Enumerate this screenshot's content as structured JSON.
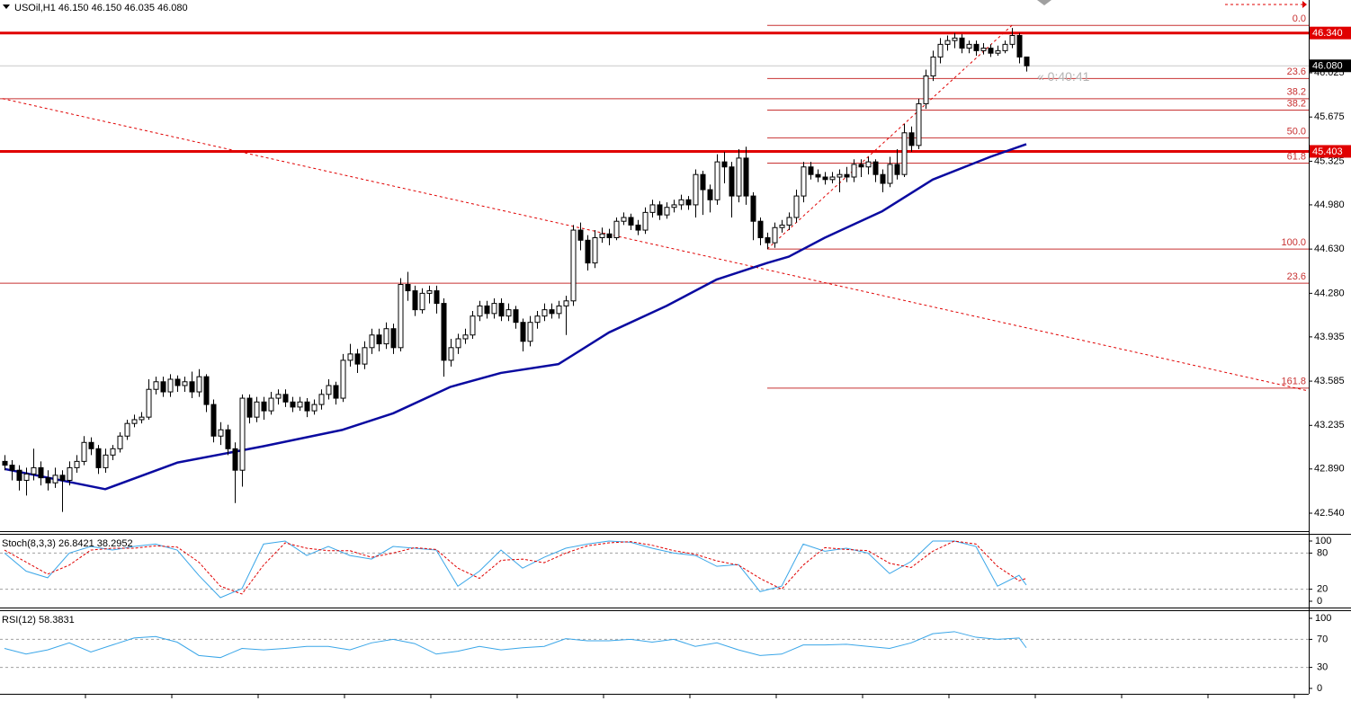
{
  "chart_data": [
    {
      "type": "candlestick",
      "title": "USOil,H1  46.150 46.150 46.035 46.080",
      "timer": "« 0:40:41",
      "open": [
        42.95,
        42.92,
        42.88,
        42.8,
        42.85,
        42.9,
        42.82,
        42.78,
        42.84,
        42.8,
        42.9,
        42.95,
        43.1,
        43.05,
        42.9,
        43.0,
        43.05,
        43.15,
        43.25,
        43.28,
        43.3,
        43.52,
        43.58,
        43.5,
        43.6,
        43.55,
        43.58,
        43.5,
        43.62,
        43.4,
        43.15,
        43.2,
        43.05,
        42.88,
        43.45,
        43.3,
        43.42,
        43.35,
        43.45,
        43.48,
        43.42,
        43.38,
        43.42,
        43.35,
        43.4,
        43.48,
        43.55,
        43.45,
        43.75,
        43.8,
        43.72,
        43.85,
        43.95,
        43.88,
        44.0,
        43.85,
        44.35,
        44.3,
        44.15,
        44.28,
        44.3,
        44.2,
        43.75,
        43.85,
        43.92,
        43.95,
        44.1,
        44.18,
        44.12,
        44.2,
        44.1,
        44.15,
        44.05,
        43.9,
        44.05,
        44.1,
        44.15,
        44.12,
        44.18,
        44.22,
        44.78,
        44.7,
        44.52,
        44.72,
        44.75,
        44.72,
        44.85,
        44.88,
        44.82,
        44.78,
        44.92,
        44.98,
        44.9,
        44.96,
        44.98,
        45.02,
        44.98,
        45.22,
        45.1,
        45.02,
        45.32,
        45.28,
        45.05,
        45.35,
        45.05,
        44.85,
        44.72,
        44.68,
        44.8,
        44.82,
        44.88,
        45.05,
        45.28,
        45.22,
        45.2,
        45.18,
        45.2,
        45.22,
        45.2,
        45.3,
        45.28,
        45.32,
        45.22,
        45.15,
        45.3,
        45.22,
        45.55,
        45.45,
        45.78,
        46.0,
        46.15,
        46.25,
        46.28,
        46.3,
        46.22,
        46.25,
        46.2,
        46.22,
        46.18,
        46.2,
        46.25,
        46.32,
        46.15
      ],
      "high": [
        43.0,
        42.96,
        42.92,
        42.9,
        43.05,
        42.95,
        42.88,
        42.9,
        42.88,
        42.95,
        43.0,
        43.15,
        43.14,
        43.08,
        43.05,
        43.08,
        43.18,
        43.28,
        43.32,
        43.34,
        43.6,
        43.62,
        43.62,
        43.64,
        43.63,
        43.62,
        43.66,
        43.68,
        43.64,
        43.44,
        43.26,
        43.24,
        43.1,
        43.48,
        43.48,
        43.46,
        43.46,
        43.5,
        43.52,
        43.52,
        43.46,
        43.46,
        43.45,
        43.44,
        43.52,
        43.6,
        43.58,
        43.8,
        43.88,
        43.84,
        43.9,
        44.0,
        44.0,
        44.05,
        44.04,
        44.4,
        44.45,
        44.34,
        44.32,
        44.34,
        44.34,
        44.24,
        43.92,
        43.96,
        44.0,
        44.14,
        44.22,
        44.22,
        44.24,
        44.24,
        44.2,
        44.18,
        44.08,
        44.1,
        44.14,
        44.2,
        44.2,
        44.22,
        44.26,
        44.82,
        44.84,
        44.74,
        44.78,
        44.8,
        44.79,
        44.88,
        44.92,
        44.91,
        44.86,
        44.96,
        45.02,
        45.01,
        45.0,
        45.02,
        45.06,
        45.05,
        45.26,
        45.25,
        45.14,
        45.38,
        45.4,
        45.32,
        45.42,
        45.44,
        45.08,
        44.88,
        44.76,
        44.84,
        44.86,
        44.92,
        45.1,
        45.32,
        45.32,
        45.26,
        45.24,
        45.24,
        45.26,
        45.28,
        45.34,
        45.34,
        45.36,
        45.34,
        45.26,
        45.36,
        45.42,
        45.62,
        45.6,
        45.82,
        46.05,
        46.2,
        46.3,
        46.32,
        46.34,
        46.33,
        46.28,
        46.28,
        46.26,
        46.25,
        46.24,
        46.28,
        46.38,
        46.34,
        46.15
      ],
      "low": [
        42.88,
        42.8,
        42.72,
        42.68,
        42.8,
        42.76,
        42.72,
        42.74,
        42.55,
        42.76,
        42.86,
        42.92,
        43.0,
        42.85,
        42.86,
        42.96,
        43.02,
        43.12,
        43.22,
        43.25,
        43.28,
        43.48,
        43.46,
        43.46,
        43.5,
        43.5,
        43.45,
        43.46,
        43.34,
        43.1,
        43.08,
        43.0,
        42.62,
        42.75,
        43.25,
        43.26,
        43.28,
        43.32,
        43.4,
        43.38,
        43.34,
        43.35,
        43.3,
        43.32,
        43.36,
        43.44,
        43.4,
        43.42,
        43.7,
        43.65,
        43.68,
        43.8,
        43.82,
        43.84,
        43.8,
        43.82,
        44.22,
        44.1,
        44.12,
        44.2,
        44.12,
        43.62,
        43.7,
        43.8,
        43.88,
        43.92,
        44.06,
        44.08,
        44.08,
        44.06,
        44.06,
        44.0,
        43.82,
        43.86,
        44.0,
        44.06,
        44.08,
        44.08,
        43.95,
        44.18,
        44.62,
        44.46,
        44.48,
        44.68,
        44.66,
        44.7,
        44.82,
        44.78,
        44.74,
        44.75,
        44.88,
        44.86,
        44.87,
        44.92,
        44.94,
        44.94,
        44.88,
        44.9,
        44.92,
        44.98,
        45.15,
        44.88,
        45.0,
        44.98,
        44.7,
        44.66,
        44.63,
        44.64,
        44.76,
        44.78,
        44.84,
        45.0,
        45.18,
        45.16,
        45.14,
        45.15,
        45.08,
        45.16,
        45.16,
        45.2,
        45.22,
        45.16,
        45.08,
        45.12,
        45.18,
        45.2,
        45.4,
        45.42,
        45.74,
        45.96,
        46.1,
        46.2,
        46.22,
        46.18,
        46.18,
        46.16,
        46.17,
        46.15,
        46.16,
        46.18,
        46.22,
        46.1,
        46.035
      ],
      "close": [
        42.92,
        42.88,
        42.8,
        42.85,
        42.9,
        42.82,
        42.78,
        42.84,
        42.8,
        42.9,
        42.95,
        43.1,
        43.05,
        42.9,
        43.0,
        43.05,
        43.15,
        43.25,
        43.28,
        43.3,
        43.52,
        43.58,
        43.5,
        43.6,
        43.55,
        43.58,
        43.5,
        43.62,
        43.4,
        43.15,
        43.2,
        43.05,
        42.88,
        43.45,
        43.3,
        43.42,
        43.35,
        43.45,
        43.48,
        43.42,
        43.38,
        43.42,
        43.35,
        43.4,
        43.48,
        43.55,
        43.45,
        43.75,
        43.8,
        43.72,
        43.85,
        43.95,
        43.88,
        44.0,
        43.85,
        44.35,
        44.3,
        44.15,
        44.28,
        44.3,
        44.2,
        43.75,
        43.85,
        43.92,
        43.95,
        44.1,
        44.18,
        44.12,
        44.2,
        44.1,
        44.15,
        44.05,
        43.9,
        44.05,
        44.1,
        44.15,
        44.12,
        44.18,
        44.22,
        44.78,
        44.7,
        44.52,
        44.72,
        44.75,
        44.72,
        44.85,
        44.88,
        44.82,
        44.78,
        44.92,
        44.98,
        44.9,
        44.96,
        44.98,
        45.02,
        44.98,
        45.22,
        45.1,
        45.02,
        45.32,
        45.28,
        45.05,
        45.35,
        45.05,
        44.85,
        44.72,
        44.68,
        44.8,
        44.82,
        44.88,
        45.05,
        45.28,
        45.22,
        45.2,
        45.18,
        45.2,
        45.22,
        45.2,
        45.3,
        45.28,
        45.32,
        45.22,
        45.15,
        45.3,
        45.22,
        45.55,
        45.45,
        45.78,
        46.0,
        46.15,
        46.25,
        46.28,
        46.3,
        46.22,
        46.25,
        46.2,
        46.22,
        46.18,
        46.2,
        46.25,
        46.32,
        46.15,
        46.08
      ],
      "ylim": [
        42.405,
        46.601
      ],
      "yticks": [
        46.025,
        45.675,
        45.325,
        {
          "value": 44.98,
          "label": "44.980"
        },
        {
          "value": 44.63,
          "label": "44.630"
        },
        {
          "value": 44.28,
          "label": "44.280"
        },
        43.935,
        43.585,
        43.235,
        {
          "value": 42.89,
          "label": "42.890"
        },
        {
          "value": 42.54,
          "label": "42.540"
        }
      ],
      "ma": {
        "color": "#0a0aa0",
        "x": [
          0,
          14,
          24,
          36,
          47,
          54,
          62,
          69,
          77,
          84,
          92,
          99,
          106,
          109,
          114,
          122,
          129,
          137,
          142
        ],
        "values": [
          42.89,
          42.73,
          42.94,
          43.07,
          43.2,
          43.33,
          43.54,
          43.65,
          43.72,
          43.97,
          44.18,
          44.39,
          44.52,
          44.57,
          44.72,
          44.93,
          45.18,
          45.36,
          45.46
        ]
      },
      "hlines": [
        {
          "value": 46.34,
          "label": "46.340",
          "color": "#e00000",
          "box_color": "#e00000",
          "width": 3
        },
        {
          "value": 45.403,
          "label": "45.403",
          "color": "#e00000",
          "box_color": "#e00000",
          "width": 3
        },
        {
          "value": 46.08,
          "label": "46.080",
          "color": "#c8c8c8",
          "box_color": "#000000",
          "width": 1
        }
      ],
      "fibo": [
        {
          "anchor_x": 106,
          "color": "#c83232",
          "levels": [
            {
              "value": 46.4,
              "label": "0.0"
            },
            {
              "value": 45.98,
              "label": "23.6"
            },
            {
              "value": 45.73,
              "label": "38.2"
            },
            {
              "value": 45.51,
              "label": "50.0"
            },
            {
              "value": 45.31,
              "label": "61.8"
            },
            {
              "value": 44.63,
              "label": "100.0"
            },
            {
              "value": 43.53,
              "label": "161.8"
            }
          ]
        },
        {
          "anchor_x": -1,
          "color": "#c83232",
          "levels": [
            {
              "value": 45.82,
              "label": "38.2"
            },
            {
              "value": 44.36,
              "label": "23.6"
            }
          ]
        }
      ],
      "dashed_lines": [
        {
          "color": "#e00000",
          "x": [
            -1,
            181
          ],
          "values": [
            45.83,
            43.51
          ]
        },
        {
          "color": "#e00000",
          "x": [
            106,
            140
          ],
          "values": [
            44.63,
            46.4
          ]
        }
      ]
    },
    {
      "type": "line",
      "title": "Stoch(8,3,3) 26.8421 38.2952",
      "ylim": [
        0,
        100
      ],
      "yticks": [
        100,
        80,
        20,
        0
      ],
      "levels": [
        80,
        20
      ],
      "x": [
        0,
        3,
        6,
        9,
        12,
        15,
        18,
        21,
        24,
        27,
        30,
        33,
        36,
        39,
        42,
        45,
        48,
        51,
        54,
        57,
        60,
        63,
        66,
        69,
        72,
        75,
        78,
        81,
        84,
        87,
        90,
        93,
        96,
        99,
        102,
        105,
        108,
        111,
        114,
        117,
        120,
        123,
        126,
        129,
        132,
        135,
        138,
        141,
        142
      ],
      "series": [
        {
          "color": "#3aa6e8",
          "dashed": false,
          "values": [
            80,
            50,
            39,
            80,
            91,
            85,
            91,
            95,
            85,
            43,
            6,
            21,
            95,
            100,
            76,
            91,
            76,
            70,
            91,
            88,
            85,
            25,
            50,
            85,
            55,
            73,
            88,
            95,
            100,
            98,
            88,
            80,
            76,
            58,
            61,
            16,
            25,
            95,
            83,
            88,
            80,
            46,
            66,
            100,
            100,
            91,
            25,
            43,
            27
          ]
        },
        {
          "color": "#e00000",
          "dashed": true,
          "values": [
            85,
            65,
            45,
            60,
            85,
            88,
            88,
            92,
            90,
            65,
            25,
            12,
            60,
            97,
            88,
            84,
            84,
            73,
            80,
            89,
            86,
            55,
            38,
            68,
            70,
            64,
            80,
            92,
            97,
            99,
            93,
            84,
            78,
            67,
            60,
            38,
            20,
            60,
            89,
            86,
            84,
            63,
            56,
            83,
            100,
            95,
            58,
            34,
            38
          ]
        }
      ]
    },
    {
      "type": "line",
      "title": "RSI(12) 58.3831",
      "ylim": [
        0,
        100
      ],
      "yticks": [
        100,
        70,
        30,
        0
      ],
      "levels": [
        70,
        30
      ],
      "x": [
        0,
        3,
        6,
        9,
        12,
        15,
        18,
        21,
        24,
        27,
        30,
        33,
        36,
        39,
        42,
        45,
        48,
        51,
        54,
        57,
        60,
        63,
        66,
        69,
        72,
        75,
        78,
        81,
        84,
        87,
        90,
        93,
        96,
        99,
        102,
        105,
        108,
        111,
        114,
        117,
        120,
        123,
        126,
        129,
        132,
        135,
        138,
        141,
        142
      ],
      "series": [
        {
          "color": "#3aa6e8",
          "dashed": false,
          "values": [
            57,
            49,
            55,
            65,
            52,
            62,
            72,
            74,
            66,
            47,
            44,
            57,
            55,
            57,
            60,
            60,
            55,
            65,
            70,
            64,
            49,
            53,
            60,
            55,
            58,
            60,
            71,
            68,
            68,
            70,
            66,
            70,
            60,
            65,
            55,
            47,
            49,
            62,
            62,
            63,
            60,
            57,
            65,
            78,
            81,
            73,
            70,
            72,
            58
          ]
        }
      ]
    }
  ]
}
